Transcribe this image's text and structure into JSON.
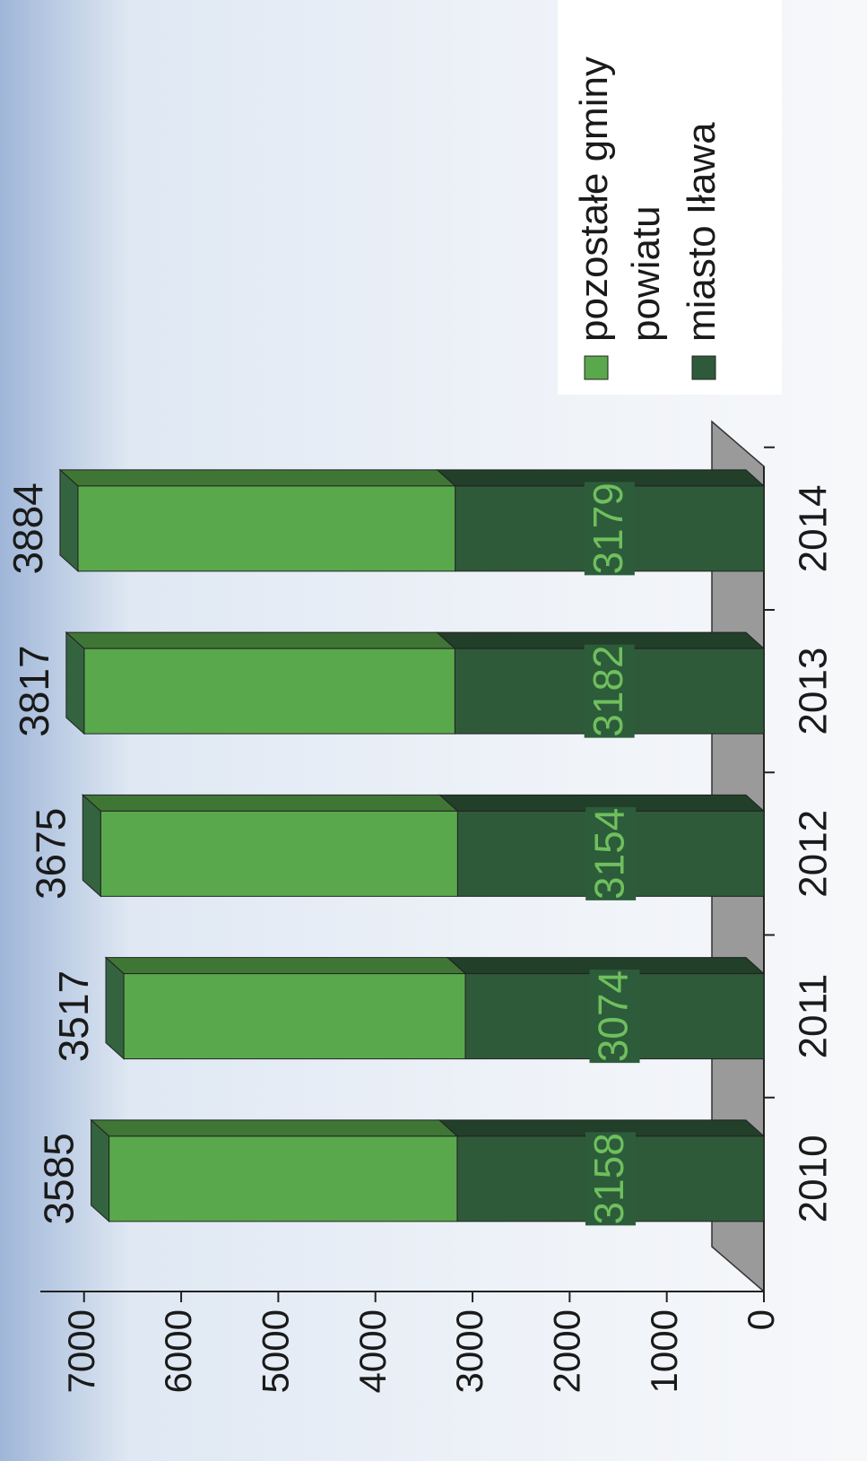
{
  "chart_data": {
    "type": "bar",
    "stacked": true,
    "rotation": -90,
    "categories": [
      "2010",
      "2011",
      "2012",
      "2013",
      "2014"
    ],
    "series": [
      {
        "name": "miasto Iława",
        "color": "#2f5a3a",
        "values": [
          3158,
          3074,
          3154,
          3182,
          3179
        ]
      },
      {
        "name": "pozostałe gminy powiatu",
        "color": "#5aa84c",
        "values": [
          3585,
          3517,
          3675,
          3817,
          3884
        ]
      }
    ],
    "ylim": [
      0,
      7450
    ],
    "yticks": [
      0,
      1000,
      2000,
      3000,
      4000,
      5000,
      6000,
      7000
    ],
    "legend": "lower right"
  }
}
